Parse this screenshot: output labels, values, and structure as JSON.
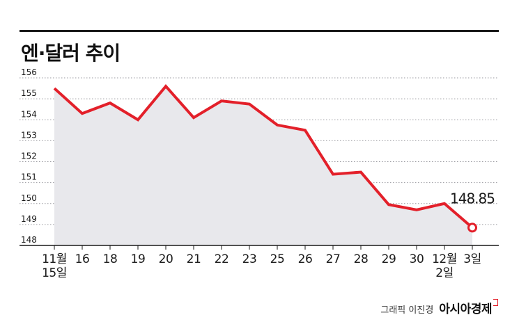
{
  "title": "엔·달러 추이",
  "credit": "그래픽 이진경",
  "brand": "아시아경제",
  "colors": {
    "line": "#e3202a",
    "area": "#e8e8ec",
    "grid": "#9a9aa0",
    "axis": "#1a1a1a",
    "text": "#1a1a1a"
  },
  "chart_data": {
    "type": "area",
    "x_labels": [
      [
        "11월",
        "15일"
      ],
      [
        "16"
      ],
      [
        "18"
      ],
      [
        "19"
      ],
      [
        "20"
      ],
      [
        "21"
      ],
      [
        "22"
      ],
      [
        "23"
      ],
      [
        "25"
      ],
      [
        "26"
      ],
      [
        "27"
      ],
      [
        "28"
      ],
      [
        "29"
      ],
      [
        "30"
      ],
      [
        "12월",
        "2일"
      ],
      [
        "3일"
      ]
    ],
    "values": [
      155.5,
      154.3,
      154.8,
      154.0,
      155.6,
      154.1,
      154.9,
      154.75,
      153.75,
      153.5,
      151.4,
      151.5,
      149.95,
      149.7,
      150.0,
      148.85
    ],
    "y_ticks": [
      148,
      149,
      150,
      151,
      152,
      153,
      154,
      155,
      156
    ],
    "ylim": [
      148,
      156
    ],
    "grid": true,
    "annotation": {
      "text": "148.85",
      "point_index": 15
    }
  }
}
